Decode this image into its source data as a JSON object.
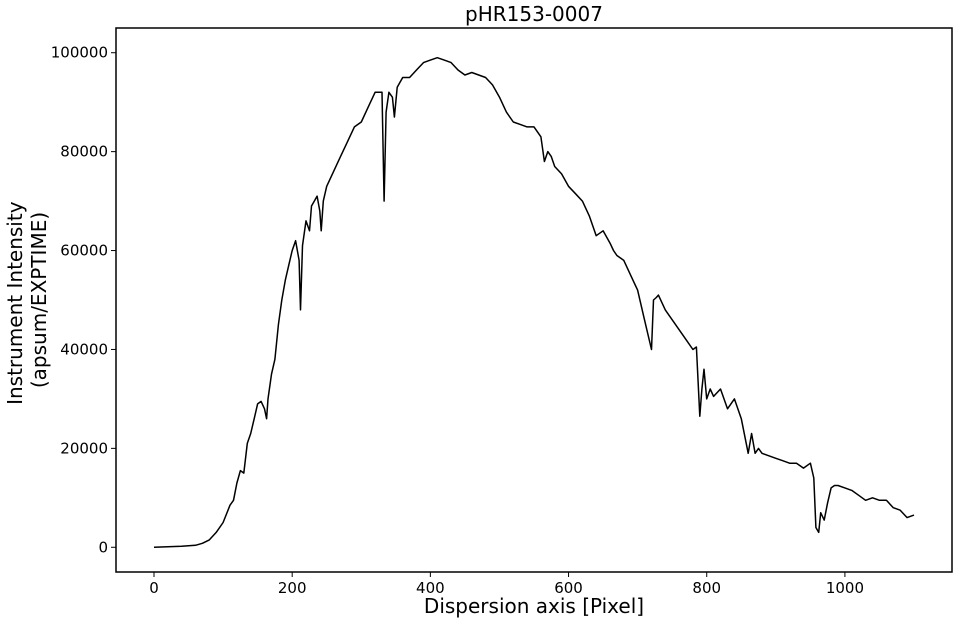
{
  "chart_data": {
    "type": "line",
    "title": "pHR153-0007",
    "xlabel": "Dispersion axis [Pixel]",
    "ylabel_lines": [
      "Instrument Intensity",
      "(apsum/EXPTIME)"
    ],
    "xlim": [
      -55,
      1155
    ],
    "ylim": [
      -5000,
      105000
    ],
    "xticks": [
      0,
      200,
      400,
      600,
      800,
      1000
    ],
    "xtick_labels": [
      "0",
      "200",
      "400",
      "600",
      "800",
      "1000"
    ],
    "yticks": [
      0,
      20000,
      40000,
      60000,
      80000,
      100000
    ],
    "ytick_labels": [
      "0",
      "20000",
      "40000",
      "60000",
      "80000",
      "100000"
    ],
    "grid": false,
    "line_color": "#000000",
    "series": [
      {
        "x": [
          0,
          20,
          40,
          60,
          70,
          80,
          90,
          100,
          110,
          115,
          120,
          125,
          130,
          135,
          140,
          145,
          150,
          155,
          160,
          163,
          165,
          170,
          175,
          180,
          185,
          190,
          195,
          200,
          205,
          210,
          212,
          215,
          220,
          225,
          228,
          232,
          236,
          240,
          242,
          245,
          250,
          260,
          270,
          280,
          290,
          300,
          310,
          320,
          330,
          333,
          336,
          340,
          345,
          348,
          352,
          360,
          370,
          380,
          390,
          400,
          410,
          420,
          430,
          440,
          450,
          460,
          470,
          480,
          490,
          500,
          510,
          520,
          530,
          540,
          550,
          560,
          565,
          570,
          575,
          580,
          590,
          600,
          610,
          620,
          630,
          640,
          650,
          660,
          665,
          670,
          680,
          690,
          700,
          710,
          720,
          723,
          727,
          730,
          740,
          750,
          760,
          770,
          780,
          785,
          790,
          793,
          796,
          800,
          805,
          810,
          820,
          830,
          840,
          850,
          860,
          865,
          870,
          875,
          880,
          890,
          900,
          910,
          920,
          930,
          940,
          950,
          955,
          958,
          962,
          965,
          970,
          975,
          980,
          985,
          990,
          1000,
          1010,
          1020,
          1030,
          1040,
          1050,
          1060,
          1070,
          1080,
          1090,
          1100
        ],
        "y": [
          0,
          100,
          200,
          400,
          800,
          1500,
          3000,
          5000,
          8500,
          9500,
          13000,
          15500,
          15000,
          21000,
          23000,
          26000,
          29000,
          29500,
          28000,
          26000,
          30000,
          35000,
          38000,
          45000,
          50000,
          54000,
          57000,
          60000,
          62000,
          58000,
          48000,
          61000,
          66000,
          64000,
          69000,
          70000,
          71000,
          68000,
          64000,
          70000,
          73000,
          76000,
          79000,
          82000,
          85000,
          86000,
          89000,
          92000,
          92000,
          70000,
          88000,
          92000,
          91000,
          87000,
          93000,
          95000,
          95000,
          96500,
          98000,
          98500,
          99000,
          98500,
          98000,
          96500,
          95500,
          96000,
          95500,
          95000,
          93500,
          91000,
          88000,
          86000,
          85500,
          85000,
          85000,
          83000,
          78000,
          80000,
          79000,
          77000,
          75500,
          73000,
          71500,
          70000,
          67000,
          63000,
          64000,
          61500,
          60000,
          59000,
          58000,
          55000,
          52000,
          46000,
          40000,
          50000,
          50500,
          51000,
          48000,
          46000,
          44000,
          42000,
          40000,
          40500,
          26500,
          32000,
          36000,
          30000,
          32000,
          30500,
          32000,
          28000,
          30000,
          26000,
          19000,
          23000,
          19000,
          20000,
          19000,
          18500,
          18000,
          17500,
          17000,
          17000,
          16000,
          17000,
          14000,
          4000,
          3000,
          7000,
          5500,
          9000,
          12000,
          12500,
          12500,
          12000,
          11500,
          10500,
          9500,
          10000,
          9500,
          9500,
          8000,
          7500,
          6000,
          6500
        ]
      }
    ]
  }
}
